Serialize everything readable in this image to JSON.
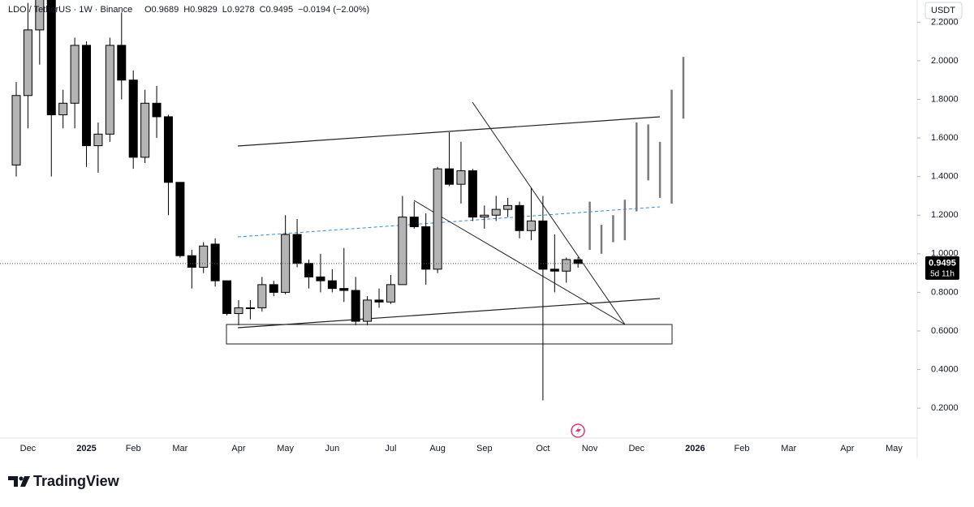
{
  "chart_data": {
    "type": "candlestick",
    "symbol": "LDO / TetherUS · 1W · Binance",
    "legend": [
      "O0.9689",
      "H0.9829",
      "L0.9278",
      "C0.9495",
      "−0.0194 (−2.00%)"
    ],
    "currency": "USDT",
    "last_price": 0.9495,
    "last_price_label": "0.9495",
    "countdown": "5d 11h",
    "brand": "TradingView",
    "up_color": "#b4b4b4",
    "down_color": "#000000",
    "projection_color": "#7a7a7a",
    "categories": [
      null,
      "Dec",
      null,
      null,
      null,
      null,
      "2025",
      null,
      null,
      null,
      "Feb",
      null,
      null,
      null,
      "Mar",
      null,
      null,
      null,
      null,
      "Apr",
      null,
      null,
      null,
      "May",
      null,
      null,
      null,
      "Jun",
      null,
      null,
      null,
      null,
      "Jul",
      null,
      null,
      null,
      "Aug",
      null,
      null,
      null,
      "Sep",
      null,
      null,
      null,
      null,
      "Oct",
      null,
      null,
      null,
      "Nov",
      null,
      null,
      null,
      "Dec",
      null,
      null,
      null,
      null,
      "2026",
      null,
      null,
      null,
      "Feb",
      null,
      null,
      null,
      "Mar",
      null,
      null,
      null,
      null,
      "Apr",
      null,
      null,
      null,
      "May",
      null
    ],
    "open": [
      1.46,
      1.82,
      2.16,
      2.4,
      1.72,
      1.78,
      2.08,
      1.56,
      1.62,
      2.08,
      1.9,
      1.5,
      1.78,
      1.71,
      1.37,
      0.99,
      0.93,
      1.05,
      0.86,
      0.69,
      0.72,
      0.72,
      0.84,
      0.8,
      1.1,
      0.95,
      0.88,
      0.86,
      0.82,
      0.81,
      0.65,
      0.76,
      0.75,
      0.84,
      1.19,
      1.14,
      0.92,
      1.44,
      1.36,
      1.43,
      1.19,
      1.2,
      1.23,
      1.25,
      1.12,
      1.17,
      0.92,
      0.91,
      0.9689,
      null,
      null,
      null,
      null,
      null,
      null,
      null,
      null,
      null,
      null,
      null,
      null,
      null,
      null,
      null,
      null,
      null,
      null,
      null,
      null,
      null,
      null,
      null,
      null,
      null,
      null,
      null,
      null
    ],
    "high": [
      1.89,
      2.3,
      2.5,
      2.5,
      1.85,
      2.12,
      2.1,
      1.68,
      2.12,
      2.25,
      1.95,
      1.85,
      1.87,
      1.72,
      1.37,
      1.02,
      1.06,
      1.08,
      0.86,
      0.76,
      0.76,
      0.88,
      0.86,
      1.2,
      1.18,
      0.97,
      1.0,
      0.92,
      1.03,
      0.88,
      0.78,
      0.82,
      0.89,
      1.3,
      1.27,
      1.21,
      1.45,
      1.63,
      1.58,
      1.44,
      1.25,
      1.3,
      1.29,
      1.27,
      1.34,
      1.3,
      1.1,
      0.98,
      0.9829,
      null,
      null,
      null,
      null,
      null,
      null,
      null,
      null,
      null,
      null,
      null,
      null,
      null,
      null,
      null,
      null,
      null,
      null,
      null,
      null,
      null,
      null,
      null,
      null,
      null,
      null,
      null,
      null
    ],
    "low": [
      1.4,
      1.65,
      1.98,
      1.4,
      1.65,
      1.65,
      1.45,
      1.42,
      1.58,
      1.8,
      1.44,
      1.47,
      1.6,
      1.2,
      0.98,
      0.82,
      0.9,
      0.83,
      0.68,
      0.63,
      0.66,
      0.7,
      0.78,
      0.79,
      0.93,
      0.82,
      0.8,
      0.8,
      0.75,
      0.63,
      0.63,
      0.72,
      0.74,
      0.84,
      1.13,
      0.84,
      0.9,
      1.35,
      1.26,
      1.17,
      1.13,
      1.17,
      1.19,
      1.08,
      1.07,
      0.24,
      0.8,
      0.85,
      0.9278,
      null,
      null,
      null,
      null,
      null,
      null,
      null,
      null,
      null,
      null,
      null,
      null,
      null,
      null,
      null,
      null,
      null,
      null,
      null,
      null,
      null,
      null,
      null,
      null,
      null,
      null,
      null,
      null
    ],
    "close": [
      1.82,
      2.16,
      2.4,
      1.72,
      1.78,
      2.08,
      1.56,
      1.62,
      2.08,
      1.9,
      1.5,
      1.78,
      1.71,
      1.37,
      0.99,
      0.93,
      1.04,
      0.86,
      0.69,
      0.72,
      0.72,
      0.84,
      0.8,
      1.1,
      0.95,
      0.88,
      0.86,
      0.82,
      0.81,
      0.65,
      0.76,
      0.75,
      0.84,
      1.19,
      1.14,
      0.92,
      1.44,
      1.36,
      1.43,
      1.19,
      1.2,
      1.23,
      1.25,
      1.12,
      1.17,
      0.92,
      0.91,
      0.97,
      0.9495,
      null,
      null,
      null,
      null,
      null,
      null,
      null,
      null,
      null,
      null,
      null,
      null,
      null,
      null,
      null,
      null,
      null,
      null,
      null,
      null,
      null,
      null,
      null,
      null,
      null,
      null,
      null,
      null
    ],
    "projection_high": [
      null,
      null,
      null,
      null,
      null,
      null,
      null,
      null,
      null,
      null,
      null,
      null,
      null,
      null,
      null,
      null,
      null,
      null,
      null,
      null,
      null,
      null,
      null,
      null,
      null,
      null,
      null,
      null,
      null,
      null,
      null,
      null,
      null,
      null,
      null,
      null,
      null,
      null,
      null,
      null,
      null,
      null,
      null,
      null,
      null,
      null,
      null,
      null,
      null,
      1.27,
      1.15,
      1.2,
      1.28,
      1.68,
      1.67,
      1.58,
      1.85,
      2.02,
      null,
      null,
      null,
      null,
      null,
      null,
      null,
      null,
      null,
      null,
      null,
      null,
      null,
      null,
      null,
      null,
      null,
      null,
      null
    ],
    "projection_low": [
      null,
      null,
      null,
      null,
      null,
      null,
      null,
      null,
      null,
      null,
      null,
      null,
      null,
      null,
      null,
      null,
      null,
      null,
      null,
      null,
      null,
      null,
      null,
      null,
      null,
      null,
      null,
      null,
      null,
      null,
      null,
      null,
      null,
      null,
      null,
      null,
      null,
      null,
      null,
      null,
      null,
      null,
      null,
      null,
      null,
      null,
      null,
      null,
      null,
      1.02,
      1.0,
      1.06,
      1.07,
      1.22,
      1.38,
      1.29,
      1.26,
      1.7,
      null,
      null,
      null,
      null,
      null,
      null,
      null,
      null,
      null,
      null,
      null,
      null,
      null,
      null,
      null,
      null,
      null,
      null,
      null
    ],
    "ylim": [
      0.045,
      2.315
    ],
    "yticks": [
      {
        "value": 0.2,
        "label": "0.2000"
      },
      {
        "value": 0.4,
        "label": "0.4000"
      },
      {
        "value": 0.6,
        "label": "0.6000"
      },
      {
        "value": 0.8,
        "label": "0.8000"
      },
      {
        "value": 1.0,
        "label": "1.0000"
      },
      {
        "value": 1.2,
        "label": "1.2000"
      },
      {
        "value": 1.4,
        "label": "1.4000"
      },
      {
        "value": 1.6,
        "label": "1.6000"
      },
      {
        "value": 1.8,
        "label": "1.8000"
      },
      {
        "value": 2.0,
        "label": "2.0000"
      },
      {
        "value": 2.2,
        "label": "2.2000"
      }
    ],
    "grid": false
  }
}
